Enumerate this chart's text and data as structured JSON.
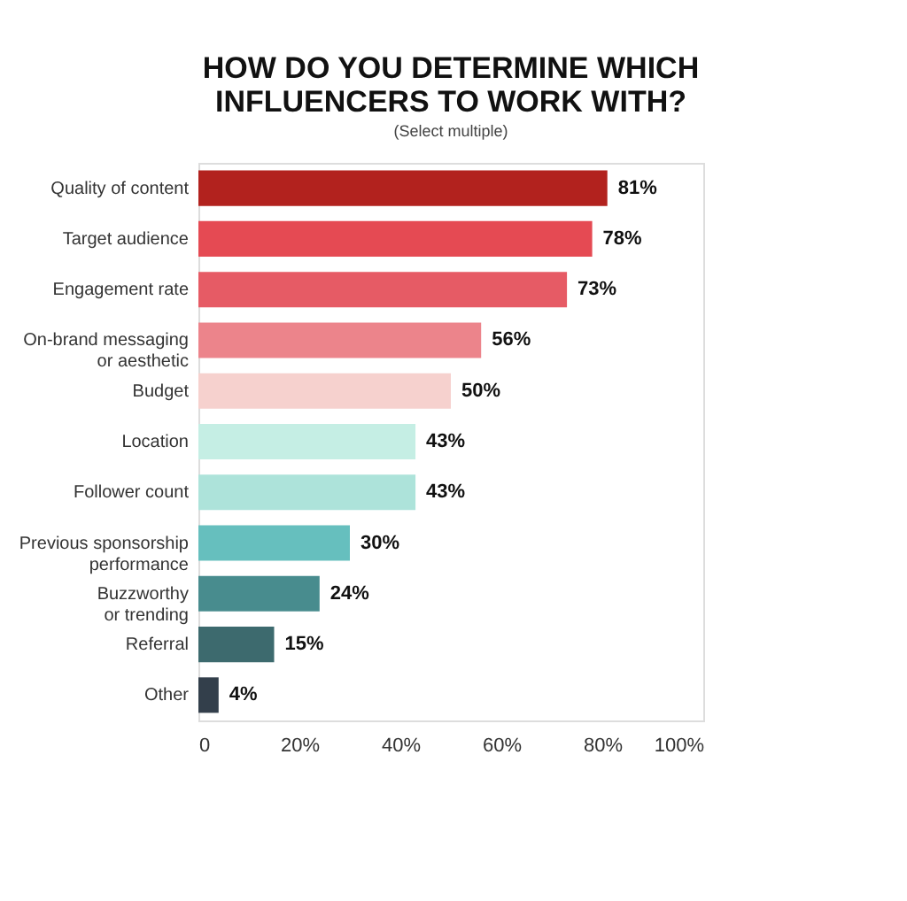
{
  "chart_data": {
    "type": "bar",
    "orientation": "horizontal",
    "title": "HOW DO YOU DETERMINE WHICH\nINFLUENCERS TO WORK WITH?",
    "subtitle": "(Select multiple)",
    "categories": [
      "Quality of content",
      "Target audience",
      "Engagement rate",
      "On-brand messaging\nor aesthetic",
      "Budget",
      "Location",
      "Follower count",
      "Previous sponsorship\nperformance",
      "Buzzworthy\nor trending",
      "Referral",
      "Other"
    ],
    "values": [
      81,
      78,
      73,
      56,
      50,
      43,
      43,
      30,
      24,
      15,
      4
    ],
    "colors": [
      "#b2221e",
      "#e54a53",
      "#e65b65",
      "#ec848b",
      "#f6d1ce",
      "#c5eee4",
      "#ade3da",
      "#66bfbe",
      "#488c8e",
      "#3d6a6e",
      "#333f4b"
    ],
    "value_labels": [
      "81%",
      "78%",
      "73%",
      "56%",
      "50%",
      "43%",
      "43%",
      "30%",
      "24%",
      "15%",
      "4%"
    ],
    "xlim": [
      0,
      100
    ],
    "xticks": [
      0,
      {
        "value": 20,
        "label": "20%"
      },
      {
        "value": 40,
        "label": "40%"
      },
      {
        "value": 60,
        "label": "60%"
      },
      {
        "value": 80,
        "label": "80%"
      },
      {
        "value": 100,
        "label": "100%"
      }
    ],
    "grid": false
  }
}
